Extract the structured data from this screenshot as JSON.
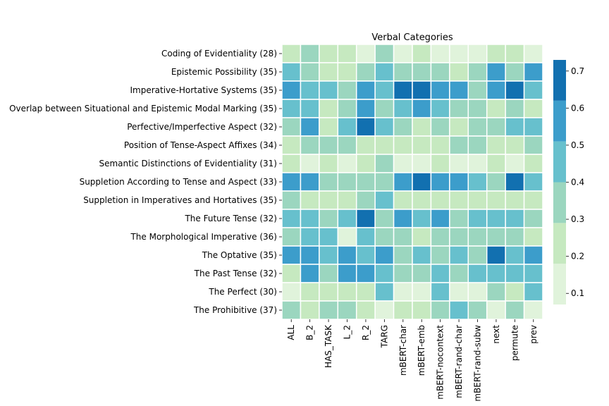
{
  "chart_data": {
    "type": "heatmap",
    "title": "Verbal Categories",
    "xlabel": "",
    "ylabel": "",
    "columns": [
      "ALL",
      "B_2",
      "HAS_TASK",
      "L_2",
      "R_2",
      "TARG",
      "mBERT-char",
      "mBERT-emb",
      "mBERT-nocontext",
      "mBERT-rand-char",
      "mBERT-rand-subw",
      "next",
      "permute",
      "prev"
    ],
    "rows": [
      "Coding of Evidentiality (28)",
      "Epistemic Possibility (35)",
      "Imperative-Hortative Systems (35)",
      "Overlap between Situational and Epistemic Modal Marking (35)",
      "Perfective/Imperfective Aspect (32)",
      "Position of Tense-Aspect Affixes (34)",
      "Semantic Distinctions of Evidentiality (31)",
      "Suppletion According to Tense and Aspect (33)",
      "Suppletion in Imperatives and Hortatives (35)",
      "The Future Tense (32)",
      "The Morphological Imperative (36)",
      "The Optative (35)",
      "The Past Tense (32)",
      "The Perfect (30)",
      "The Prohibitive (37)"
    ],
    "values": [
      [
        0.25,
        0.3,
        0.18,
        0.27,
        0.15,
        0.35,
        0.15,
        0.27,
        0.15,
        0.17,
        0.15,
        0.27,
        0.27,
        0.15
      ],
      [
        0.45,
        0.35,
        0.27,
        0.25,
        0.35,
        0.45,
        0.35,
        0.35,
        0.35,
        0.27,
        0.35,
        0.55,
        0.35,
        0.55
      ],
      [
        0.55,
        0.45,
        0.45,
        0.35,
        0.55,
        0.45,
        0.7,
        0.7,
        0.55,
        0.55,
        0.35,
        0.55,
        0.7,
        0.45
      ],
      [
        0.45,
        0.45,
        0.27,
        0.35,
        0.55,
        0.35,
        0.45,
        0.55,
        0.45,
        0.35,
        0.35,
        0.25,
        0.35,
        0.25
      ],
      [
        0.35,
        0.55,
        0.25,
        0.45,
        0.7,
        0.45,
        0.35,
        0.25,
        0.35,
        0.25,
        0.35,
        0.35,
        0.45,
        0.45
      ],
      [
        0.25,
        0.35,
        0.35,
        0.35,
        0.25,
        0.27,
        0.25,
        0.25,
        0.25,
        0.35,
        0.35,
        0.25,
        0.27,
        0.35
      ],
      [
        0.25,
        0.15,
        0.25,
        0.15,
        0.25,
        0.35,
        0.15,
        0.15,
        0.25,
        0.15,
        0.15,
        0.25,
        0.15,
        0.25
      ],
      [
        0.55,
        0.55,
        0.35,
        0.35,
        0.35,
        0.35,
        0.55,
        0.7,
        0.55,
        0.55,
        0.45,
        0.35,
        0.7,
        0.45
      ],
      [
        0.35,
        0.25,
        0.25,
        0.27,
        0.35,
        0.45,
        0.25,
        0.25,
        0.25,
        0.25,
        0.25,
        0.25,
        0.25,
        0.25
      ],
      [
        0.45,
        0.45,
        0.35,
        0.45,
        0.7,
        0.35,
        0.55,
        0.45,
        0.55,
        0.35,
        0.45,
        0.45,
        0.45,
        0.35
      ],
      [
        0.35,
        0.45,
        0.45,
        0.15,
        0.45,
        0.35,
        0.35,
        0.25,
        0.35,
        0.35,
        0.35,
        0.35,
        0.35,
        0.25
      ],
      [
        0.55,
        0.55,
        0.45,
        0.55,
        0.45,
        0.55,
        0.35,
        0.45,
        0.35,
        0.45,
        0.35,
        0.7,
        0.45,
        0.55
      ],
      [
        0.25,
        0.55,
        0.35,
        0.55,
        0.55,
        0.45,
        0.35,
        0.35,
        0.45,
        0.35,
        0.45,
        0.45,
        0.45,
        0.45
      ],
      [
        0.15,
        0.25,
        0.25,
        0.25,
        0.25,
        0.45,
        0.15,
        0.15,
        0.45,
        0.15,
        0.15,
        0.35,
        0.25,
        0.45
      ],
      [
        0.35,
        0.25,
        0.35,
        0.35,
        0.25,
        0.15,
        0.25,
        0.25,
        0.35,
        0.45,
        0.35,
        0.15,
        0.35,
        0.15
      ]
    ],
    "colorbar": {
      "ticks": [
        0.1,
        0.2,
        0.3,
        0.4,
        0.5,
        0.6,
        0.7
      ],
      "range": [
        0.07,
        0.73
      ],
      "palette": [
        "#e0f3db",
        "#c6e9c0",
        "#9bd6bf",
        "#67c0cd",
        "#3c9dcb",
        "#1270b0"
      ],
      "boundaries": [
        0.07,
        0.18,
        0.29,
        0.4,
        0.51,
        0.62,
        0.73
      ]
    },
    "grid": false,
    "legend": "colorbar-right"
  }
}
